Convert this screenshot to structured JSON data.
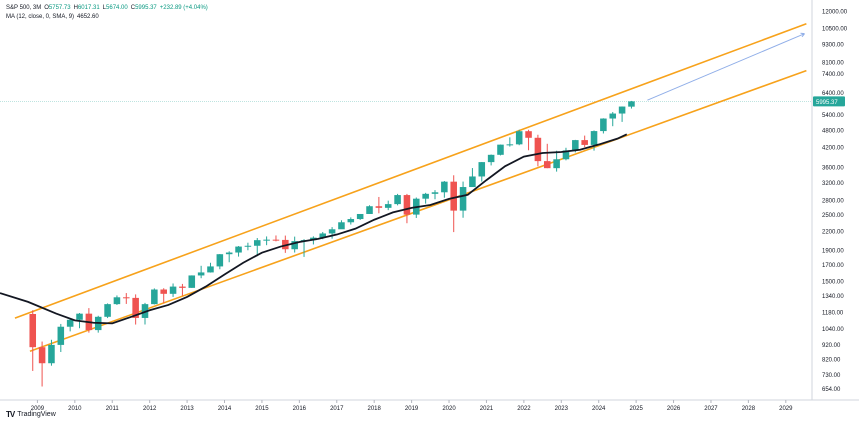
{
  "legend": {
    "symbol": "S&P 500, 3M",
    "o_label": "O",
    "o": "5757.73",
    "h_label": "H",
    "h": "6017.31",
    "l_label": "L",
    "l": "5674.00",
    "c_label": "C",
    "c": "5995.37",
    "change": "+232.89 (+4.04%)",
    "ma_label": "MA (12, close, 0, SMA, 9)",
    "ma_value": "4652.60"
  },
  "price_tag": "5995.37",
  "footer": {
    "logo": "TV",
    "brand": "TradingView"
  },
  "colors": {
    "up": "#26a69a",
    "down": "#ef5350",
    "channel": "#f7a21b",
    "ma": "#131722",
    "projection": "#90aee8",
    "price_line": "#26a69a"
  },
  "chart_data": {
    "type": "candlestick",
    "scale": "log",
    "ylim": [
      620,
      12500
    ],
    "y_ticks": [
      654,
      730,
      820,
      920,
      1040,
      1180,
      1340,
      1500,
      1700,
      1900,
      2200,
      2500,
      2800,
      3200,
      3600,
      4200,
      4800,
      5400,
      6400,
      7400,
      8100,
      9300,
      10500,
      12000
    ],
    "y_tick_labels": [
      "654.00",
      "730.00",
      "820.00",
      "920.00",
      "1040.00",
      "1180.00",
      "1340.00",
      "1500.00",
      "1700.00",
      "1900.00",
      "2200.00",
      "2500.00",
      "2800.00",
      "3200.00",
      "3600.00",
      "4200.00",
      "4800.00",
      "5400.00",
      "6400.00",
      "7400.00",
      "8100.00",
      "9300.00",
      "10500.00",
      "12000.00"
    ],
    "x_range": [
      2008.0,
      2029.7
    ],
    "x_ticks": [
      "2009",
      "2010",
      "2011",
      "2012",
      "2013",
      "2014",
      "2015",
      "2016",
      "2017",
      "2018",
      "2019",
      "2020",
      "2021",
      "2022",
      "2023",
      "2024",
      "2025",
      "2026",
      "2027",
      "2028",
      "2029"
    ],
    "candles": [
      {
        "t": 2008.75,
        "o": 1166,
        "h": 1200,
        "l": 752,
        "c": 903
      },
      {
        "t": 2009.0,
        "o": 903,
        "h": 943,
        "l": 667,
        "c": 798
      },
      {
        "t": 2009.25,
        "o": 798,
        "h": 956,
        "l": 783,
        "c": 919
      },
      {
        "t": 2009.5,
        "o": 919,
        "h": 1080,
        "l": 870,
        "c": 1057
      },
      {
        "t": 2009.75,
        "o": 1057,
        "h": 1130,
        "l": 1020,
        "c": 1115
      },
      {
        "t": 2010.0,
        "o": 1115,
        "h": 1175,
        "l": 1045,
        "c": 1169
      },
      {
        "t": 2010.25,
        "o": 1169,
        "h": 1220,
        "l": 1010,
        "c": 1030
      },
      {
        "t": 2010.5,
        "o": 1030,
        "h": 1150,
        "l": 1010,
        "c": 1141
      },
      {
        "t": 2010.75,
        "o": 1141,
        "h": 1265,
        "l": 1130,
        "c": 1258
      },
      {
        "t": 2011.0,
        "o": 1258,
        "h": 1345,
        "l": 1250,
        "c": 1326
      },
      {
        "t": 2011.25,
        "o": 1326,
        "h": 1370,
        "l": 1260,
        "c": 1320
      },
      {
        "t": 2011.5,
        "o": 1320,
        "h": 1356,
        "l": 1075,
        "c": 1131
      },
      {
        "t": 2011.75,
        "o": 1131,
        "h": 1270,
        "l": 1075,
        "c": 1258
      },
      {
        "t": 2012.0,
        "o": 1258,
        "h": 1420,
        "l": 1255,
        "c": 1408
      },
      {
        "t": 2012.25,
        "o": 1408,
        "h": 1422,
        "l": 1267,
        "c": 1362
      },
      {
        "t": 2012.5,
        "o": 1362,
        "h": 1475,
        "l": 1330,
        "c": 1440
      },
      {
        "t": 2012.75,
        "o": 1440,
        "h": 1470,
        "l": 1343,
        "c": 1426
      },
      {
        "t": 2013.0,
        "o": 1426,
        "h": 1570,
        "l": 1426,
        "c": 1569
      },
      {
        "t": 2013.25,
        "o": 1569,
        "h": 1690,
        "l": 1536,
        "c": 1606
      },
      {
        "t": 2013.5,
        "o": 1606,
        "h": 1730,
        "l": 1604,
        "c": 1682
      },
      {
        "t": 2013.75,
        "o": 1682,
        "h": 1850,
        "l": 1646,
        "c": 1848
      },
      {
        "t": 2014.0,
        "o": 1848,
        "h": 1890,
        "l": 1737,
        "c": 1872
      },
      {
        "t": 2014.25,
        "o": 1872,
        "h": 1968,
        "l": 1814,
        "c": 1960
      },
      {
        "t": 2014.5,
        "o": 1960,
        "h": 2019,
        "l": 1905,
        "c": 1972
      },
      {
        "t": 2014.75,
        "o": 1972,
        "h": 2093,
        "l": 1820,
        "c": 2059
      },
      {
        "t": 2015.0,
        "o": 2059,
        "h": 2119,
        "l": 1981,
        "c": 2067
      },
      {
        "t": 2015.25,
        "o": 2067,
        "h": 2135,
        "l": 2040,
        "c": 2063
      },
      {
        "t": 2015.5,
        "o": 2063,
        "h": 2133,
        "l": 1867,
        "c": 1920
      },
      {
        "t": 2015.75,
        "o": 1920,
        "h": 2116,
        "l": 1872,
        "c": 2044
      },
      {
        "t": 2016.0,
        "o": 2044,
        "h": 2075,
        "l": 1810,
        "c": 2060
      },
      {
        "t": 2016.25,
        "o": 2060,
        "h": 2120,
        "l": 1992,
        "c": 2099
      },
      {
        "t": 2016.5,
        "o": 2099,
        "h": 2193,
        "l": 2074,
        "c": 2168
      },
      {
        "t": 2016.75,
        "o": 2168,
        "h": 2277,
        "l": 2083,
        "c": 2239
      },
      {
        "t": 2017.0,
        "o": 2239,
        "h": 2400,
        "l": 2245,
        "c": 2363
      },
      {
        "t": 2017.25,
        "o": 2363,
        "h": 2454,
        "l": 2322,
        "c": 2423
      },
      {
        "t": 2017.5,
        "o": 2423,
        "h": 2519,
        "l": 2406,
        "c": 2519
      },
      {
        "t": 2017.75,
        "o": 2519,
        "h": 2694,
        "l": 2520,
        "c": 2674
      },
      {
        "t": 2018.0,
        "o": 2674,
        "h": 2872,
        "l": 2533,
        "c": 2641
      },
      {
        "t": 2018.25,
        "o": 2641,
        "h": 2791,
        "l": 2594,
        "c": 2718
      },
      {
        "t": 2018.5,
        "o": 2718,
        "h": 2941,
        "l": 2692,
        "c": 2914
      },
      {
        "t": 2018.75,
        "o": 2914,
        "h": 2940,
        "l": 2346,
        "c": 2507
      },
      {
        "t": 2019.0,
        "o": 2507,
        "h": 2860,
        "l": 2443,
        "c": 2834
      },
      {
        "t": 2019.25,
        "o": 2834,
        "h": 2964,
        "l": 2728,
        "c": 2942
      },
      {
        "t": 2019.5,
        "o": 2942,
        "h": 3028,
        "l": 2822,
        "c": 2977
      },
      {
        "t": 2019.75,
        "o": 2977,
        "h": 3247,
        "l": 2855,
        "c": 3231
      },
      {
        "t": 2020.0,
        "o": 3231,
        "h": 3394,
        "l": 2191,
        "c": 2585
      },
      {
        "t": 2020.25,
        "o": 2585,
        "h": 3233,
        "l": 2447,
        "c": 3100
      },
      {
        "t": 2020.5,
        "o": 3100,
        "h": 3588,
        "l": 3127,
        "c": 3363
      },
      {
        "t": 2020.75,
        "o": 3363,
        "h": 3760,
        "l": 3233,
        "c": 3756
      },
      {
        "t": 2021.0,
        "o": 3756,
        "h": 3983,
        "l": 3662,
        "c": 3973
      },
      {
        "t": 2021.25,
        "o": 3973,
        "h": 4302,
        "l": 3955,
        "c": 4297
      },
      {
        "t": 2021.5,
        "o": 4297,
        "h": 4545,
        "l": 4233,
        "c": 4307
      },
      {
        "t": 2021.75,
        "o": 4307,
        "h": 4818,
        "l": 4278,
        "c": 4766
      },
      {
        "t": 2022.0,
        "o": 4766,
        "h": 4818,
        "l": 4115,
        "c": 4530
      },
      {
        "t": 2022.25,
        "o": 4530,
        "h": 4637,
        "l": 3637,
        "c": 3785
      },
      {
        "t": 2022.5,
        "o": 3785,
        "h": 4325,
        "l": 3584,
        "c": 3585
      },
      {
        "t": 2022.75,
        "o": 3585,
        "h": 4100,
        "l": 3491,
        "c": 3839
      },
      {
        "t": 2023.0,
        "o": 3839,
        "h": 4195,
        "l": 3808,
        "c": 4109
      },
      {
        "t": 2023.25,
        "o": 4109,
        "h": 4458,
        "l": 4048,
        "c": 4450
      },
      {
        "t": 2023.5,
        "o": 4450,
        "h": 4607,
        "l": 4216,
        "c": 4288
      },
      {
        "t": 2023.75,
        "o": 4288,
        "h": 4793,
        "l": 4103,
        "c": 4770
      },
      {
        "t": 2024.0,
        "o": 4770,
        "h": 5265,
        "l": 4683,
        "c": 5254
      },
      {
        "t": 2024.25,
        "o": 5254,
        "h": 5524,
        "l": 4953,
        "c": 5460
      },
      {
        "t": 2024.5,
        "o": 5460,
        "h": 5767,
        "l": 5120,
        "c": 5762
      },
      {
        "t": 2024.75,
        "o": 5757.73,
        "h": 6017.31,
        "l": 5674.0,
        "c": 5995.37
      }
    ],
    "ma": [
      {
        "t": 2008.0,
        "v": 1370
      },
      {
        "t": 2008.75,
        "v": 1280
      },
      {
        "t": 2009.5,
        "v": 1170
      },
      {
        "t": 2010.0,
        "v": 1110
      },
      {
        "t": 2010.5,
        "v": 1090
      },
      {
        "t": 2011.0,
        "v": 1085
      },
      {
        "t": 2011.5,
        "v": 1140
      },
      {
        "t": 2012.0,
        "v": 1200
      },
      {
        "t": 2012.5,
        "v": 1250
      },
      {
        "t": 2013.0,
        "v": 1330
      },
      {
        "t": 2013.5,
        "v": 1440
      },
      {
        "t": 2014.0,
        "v": 1580
      },
      {
        "t": 2014.5,
        "v": 1730
      },
      {
        "t": 2015.0,
        "v": 1870
      },
      {
        "t": 2015.5,
        "v": 1960
      },
      {
        "t": 2016.0,
        "v": 2030
      },
      {
        "t": 2016.5,
        "v": 2080
      },
      {
        "t": 2017.0,
        "v": 2150
      },
      {
        "t": 2017.5,
        "v": 2250
      },
      {
        "t": 2018.0,
        "v": 2410
      },
      {
        "t": 2018.5,
        "v": 2550
      },
      {
        "t": 2019.0,
        "v": 2640
      },
      {
        "t": 2019.5,
        "v": 2700
      },
      {
        "t": 2020.0,
        "v": 2830
      },
      {
        "t": 2020.5,
        "v": 2920
      },
      {
        "t": 2021.0,
        "v": 3270
      },
      {
        "t": 2021.5,
        "v": 3640
      },
      {
        "t": 2022.0,
        "v": 3920
      },
      {
        "t": 2022.5,
        "v": 4030
      },
      {
        "t": 2023.0,
        "v": 4060
      },
      {
        "t": 2023.5,
        "v": 4130
      },
      {
        "t": 2024.0,
        "v": 4300
      },
      {
        "t": 2024.5,
        "v": 4500
      },
      {
        "t": 2024.75,
        "v": 4652.6
      }
    ],
    "channel_upper": [
      {
        "t": 2008.4,
        "v": 1130
      },
      {
        "t": 2029.55,
        "v": 10900
      }
    ],
    "channel_lower": [
      {
        "t": 2008.8,
        "v": 875
      },
      {
        "t": 2029.55,
        "v": 7600
      }
    ],
    "projection": [
      {
        "t": 2025.3,
        "v": 6050
      },
      {
        "t": 2029.5,
        "v": 10100
      }
    ]
  }
}
